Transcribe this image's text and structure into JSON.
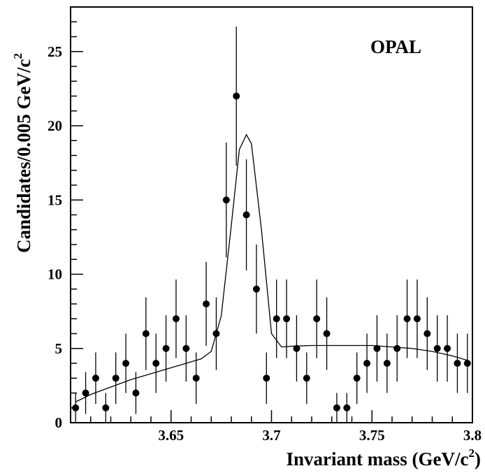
{
  "chart_data": {
    "type": "scatter",
    "annotation": "OPAL",
    "xlabel": {
      "main": "Invariant mass (GeV/c",
      "sup": "2",
      "close": ")"
    },
    "ylabel": {
      "main": "Candidates/0.005 GeV/c",
      "sup": "2"
    },
    "xlim": [
      3.6,
      3.8
    ],
    "ylim": [
      0,
      28
    ],
    "x_ticks": [
      {
        "value": 3.65,
        "label": "3.65"
      },
      {
        "value": 3.7,
        "label": "3.7"
      },
      {
        "value": 3.75,
        "label": "3.75"
      },
      {
        "value": 3.8,
        "label": "3.8"
      }
    ],
    "y_ticks": [
      {
        "value": 0,
        "label": "0"
      },
      {
        "value": 5,
        "label": "5"
      },
      {
        "value": 10,
        "label": "10"
      },
      {
        "value": 15,
        "label": "15"
      },
      {
        "value": 20,
        "label": "20"
      },
      {
        "value": 25,
        "label": "25"
      }
    ],
    "grid": false,
    "series": [
      {
        "type": "points_with_errors",
        "x": [
          3.6025,
          3.6075,
          3.6125,
          3.6175,
          3.6225,
          3.6275,
          3.6325,
          3.6375,
          3.6425,
          3.6475,
          3.6525,
          3.6575,
          3.6625,
          3.6675,
          3.6725,
          3.6775,
          3.6825,
          3.6875,
          3.6925,
          3.6975,
          3.7025,
          3.7075,
          3.7125,
          3.7175,
          3.7225,
          3.7275,
          3.7325,
          3.7375,
          3.7425,
          3.7475,
          3.7525,
          3.7575,
          3.7625,
          3.7675,
          3.7725,
          3.7775,
          3.7825,
          3.7875,
          3.7925,
          3.7975
        ],
        "y": [
          1,
          2,
          3,
          1,
          3,
          4,
          2,
          6,
          4,
          5,
          7,
          5,
          3,
          8,
          6,
          15,
          22,
          14,
          9,
          3,
          7,
          7,
          5,
          3,
          7,
          6,
          1,
          1,
          3,
          4,
          5,
          4,
          5,
          7,
          7,
          6,
          5,
          5,
          4,
          4
        ]
      },
      {
        "type": "fit_curve",
        "x": [
          3.6025,
          3.61,
          3.62,
          3.63,
          3.64,
          3.65,
          3.66,
          3.665,
          3.67,
          3.675,
          3.68,
          3.684,
          3.6875,
          3.69,
          3.695,
          3.7,
          3.705,
          3.71,
          3.72,
          3.73,
          3.74,
          3.75,
          3.76,
          3.77,
          3.78,
          3.79,
          3.7975
        ],
        "y": [
          1.4,
          1.9,
          2.4,
          2.9,
          3.3,
          3.7,
          4.1,
          4.3,
          4.8,
          7.2,
          13.3,
          18.4,
          19.4,
          18.8,
          13.0,
          6.0,
          5.1,
          5.15,
          5.2,
          5.2,
          5.2,
          5.2,
          5.1,
          5.0,
          4.8,
          4.5,
          4.2
        ]
      }
    ]
  }
}
